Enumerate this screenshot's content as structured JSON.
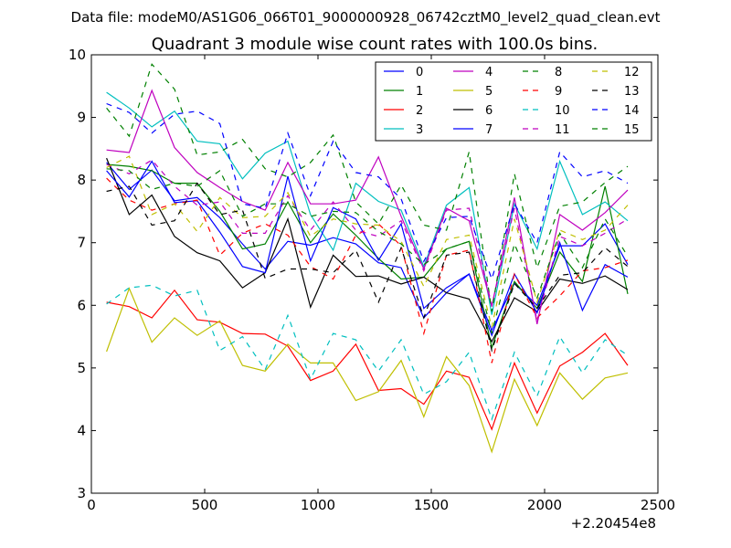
{
  "chart_data": {
    "type": "line",
    "suptitle": "Data file: modeM0/AS1G06_066T01_9000000928_06742cztM0_level2_quad_clean.evt",
    "title": "Quadrant 3 module wise count rates with 100.0s bins.",
    "xlabel": "",
    "ylabel": "",
    "x_offset_label": "+2.20454e8",
    "xlim": [
      0,
      2500
    ],
    "ylim": [
      3,
      10
    ],
    "xticks": [
      0,
      500,
      1000,
      1500,
      2000,
      2500
    ],
    "yticks": [
      3,
      4,
      5,
      6,
      7,
      8,
      9,
      10
    ],
    "x": [
      67,
      167,
      267,
      367,
      467,
      567,
      667,
      767,
      867,
      967,
      1067,
      1167,
      1267,
      1367,
      1467,
      1567,
      1667,
      1767,
      1867,
      1967,
      2067,
      2167,
      2267,
      2367
    ],
    "legend_position": "top-right",
    "series": [
      {
        "name": "0",
        "color": "#0000ff",
        "dash": "solid",
        "values": [
          8.28,
          7.85,
          8.16,
          7.67,
          7.72,
          7.4,
          6.98,
          6.58,
          7.02,
          6.96,
          7.08,
          6.98,
          6.68,
          6.6,
          5.8,
          6.2,
          6.5,
          5.6,
          6.35,
          6.0,
          6.95,
          6.95,
          7.3,
          6.65
        ]
      },
      {
        "name": "1",
        "color": "#008000",
        "dash": "solid",
        "values": [
          8.25,
          8.22,
          8.15,
          7.95,
          7.95,
          7.5,
          6.9,
          6.98,
          7.65,
          7.0,
          7.46,
          7.12,
          6.75,
          6.42,
          6.45,
          6.9,
          7.02,
          5.32,
          6.38,
          5.95,
          6.85,
          6.38,
          7.9,
          6.18
        ]
      },
      {
        "name": "2",
        "color": "#ff0000",
        "dash": "solid",
        "values": [
          6.05,
          5.98,
          5.8,
          6.24,
          5.77,
          5.73,
          5.55,
          5.54,
          5.35,
          4.8,
          4.95,
          5.38,
          4.64,
          4.67,
          4.42,
          4.95,
          4.85,
          4.02,
          5.08,
          4.28,
          5.03,
          5.25,
          5.55,
          5.04
        ]
      },
      {
        "name": "3",
        "color": "#00bfbf",
        "dash": "solid",
        "values": [
          9.4,
          9.15,
          8.85,
          9.1,
          8.62,
          8.58,
          8.02,
          8.43,
          8.62,
          7.45,
          6.88,
          7.95,
          7.66,
          7.52,
          6.62,
          7.6,
          7.88,
          5.85,
          7.62,
          6.9,
          8.3,
          7.45,
          7.65,
          7.35
        ]
      },
      {
        "name": "4",
        "color": "#bf00bf",
        "dash": "solid",
        "values": [
          8.48,
          8.44,
          9.43,
          8.52,
          8.12,
          7.88,
          7.66,
          7.52,
          8.28,
          7.62,
          7.62,
          7.68,
          8.37,
          7.42,
          6.58,
          7.55,
          7.35,
          5.98,
          7.72,
          5.7,
          7.45,
          7.2,
          7.48,
          7.84
        ]
      },
      {
        "name": "5",
        "color": "#bfbf00",
        "dash": "solid",
        "values": [
          5.26,
          6.27,
          5.41,
          5.8,
          5.52,
          5.75,
          5.04,
          4.95,
          5.38,
          5.08,
          5.08,
          4.48,
          4.62,
          5.12,
          4.22,
          5.18,
          4.72,
          3.66,
          4.82,
          4.08,
          4.92,
          4.5,
          4.84,
          4.92
        ]
      },
      {
        "name": "6",
        "color": "#000000",
        "dash": "solid",
        "values": [
          8.35,
          7.45,
          7.76,
          7.1,
          6.84,
          6.71,
          6.28,
          6.52,
          7.38,
          5.97,
          6.8,
          6.46,
          6.47,
          6.34,
          6.45,
          6.2,
          6.1,
          5.42,
          6.12,
          5.9,
          6.42,
          6.35,
          6.47,
          6.25
        ]
      },
      {
        "name": "7",
        "color": "#0000ff",
        "dash": "solid",
        "values": [
          8.15,
          7.73,
          8.3,
          7.64,
          7.67,
          7.17,
          6.62,
          6.52,
          8.06,
          6.71,
          7.56,
          7.38,
          6.72,
          7.3,
          5.95,
          6.28,
          6.5,
          5.52,
          6.5,
          5.88,
          7.0,
          5.92,
          6.65,
          6.45
        ]
      },
      {
        "name": "8",
        "color": "#008000",
        "dash": "dashed",
        "values": [
          9.15,
          8.7,
          9.85,
          9.45,
          8.4,
          8.45,
          8.65,
          8.18,
          8.05,
          8.28,
          8.72,
          7.65,
          7.3,
          7.92,
          7.28,
          7.2,
          8.45,
          5.9,
          8.1,
          6.6,
          7.58,
          7.65,
          7.96,
          8.22
        ]
      },
      {
        "name": "9",
        "color": "#ff0000",
        "dash": "dashed",
        "values": [
          8.03,
          7.68,
          7.52,
          7.62,
          7.68,
          6.8,
          7.15,
          7.3,
          7.12,
          6.62,
          6.42,
          7.12,
          7.3,
          6.95,
          5.55,
          6.8,
          6.88,
          5.08,
          6.5,
          5.8,
          6.15,
          6.55,
          6.6,
          6.72
        ]
      },
      {
        "name": "10",
        "color": "#00bfbf",
        "dash": "dashed",
        "values": [
          6.02,
          6.28,
          6.32,
          6.15,
          6.24,
          5.28,
          5.5,
          4.97,
          5.84,
          4.82,
          5.55,
          5.45,
          4.95,
          5.45,
          4.58,
          4.78,
          5.25,
          4.18,
          5.25,
          4.55,
          5.5,
          4.92,
          5.45,
          5.2
        ]
      },
      {
        "name": "11",
        "color": "#bf00bf",
        "dash": "dashed",
        "values": [
          8.25,
          8.1,
          8.32,
          7.9,
          7.6,
          7.65,
          7.15,
          7.15,
          7.75,
          7.2,
          7.65,
          7.2,
          7.1,
          7.35,
          6.55,
          7.52,
          7.55,
          6.0,
          7.55,
          5.75,
          7.1,
          6.95,
          7.15,
          7.38
        ]
      },
      {
        "name": "12",
        "color": "#bfbf00",
        "dash": "dashed",
        "values": [
          8.2,
          8.38,
          7.45,
          7.62,
          7.18,
          7.72,
          7.4,
          7.42,
          7.8,
          7.1,
          7.38,
          7.3,
          7.28,
          7.02,
          6.3,
          7.05,
          7.12,
          5.65,
          7.38,
          6.05,
          7.2,
          7.05,
          7.2,
          7.6
        ]
      },
      {
        "name": "13",
        "color": "#000000",
        "dash": "dashed",
        "values": [
          7.82,
          7.9,
          7.28,
          7.35,
          7.95,
          7.45,
          7.52,
          6.43,
          6.58,
          6.58,
          6.52,
          6.88,
          6.05,
          6.92,
          5.8,
          6.8,
          6.85,
          5.28,
          6.35,
          5.95,
          6.48,
          6.52,
          6.92,
          6.62
        ]
      },
      {
        "name": "14",
        "color": "#0000ff",
        "dash": "dashed",
        "values": [
          9.22,
          9.08,
          8.75,
          9.05,
          9.1,
          8.9,
          7.62,
          7.55,
          8.75,
          7.75,
          8.62,
          8.12,
          8.05,
          7.7,
          6.7,
          7.4,
          7.42,
          6.42,
          7.62,
          7.0,
          8.45,
          8.05,
          8.15,
          7.95
        ]
      },
      {
        "name": "15",
        "color": "#008000",
        "dash": "dashed",
        "values": [
          8.18,
          8.15,
          7.85,
          7.95,
          7.9,
          8.15,
          7.42,
          7.62,
          7.62,
          7.42,
          7.5,
          7.48,
          7.18,
          6.98,
          6.65,
          6.9,
          7.02,
          5.55,
          6.98,
          6.12,
          7.15,
          6.6,
          7.38,
          6.78
        ]
      }
    ]
  }
}
